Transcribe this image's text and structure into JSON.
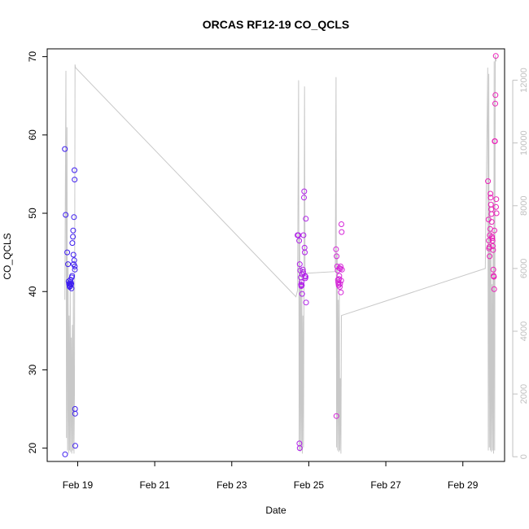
{
  "chart_data": {
    "type": "scatter",
    "title": "ORCAS RF12-19 CO_QCLS",
    "xlabel": "Date",
    "ylabel": "CO_QCLS",
    "xlim": [
      "2016-02-18T05:00",
      "2016-03-01T02:00"
    ],
    "ylim": [
      18.3,
      71.0
    ],
    "y2lim": [
      -150,
      13000
    ],
    "x_ticks": [
      {
        "date": "2016-02-19T00:00",
        "label": "Feb 19"
      },
      {
        "date": "2016-02-21T00:00",
        "label": "Feb 21"
      },
      {
        "date": "2016-02-23T00:00",
        "label": "Feb 23"
      },
      {
        "date": "2016-02-25T00:00",
        "label": "Feb 25"
      },
      {
        "date": "2016-02-27T00:00",
        "label": "Feb 27"
      },
      {
        "date": "2016-02-29T00:00",
        "label": "Feb 29"
      }
    ],
    "y_ticks": [
      20,
      30,
      40,
      50,
      60,
      70
    ],
    "y2_ticks": [
      0,
      2000,
      4000,
      6000,
      8000,
      10000,
      12000
    ],
    "grid": false,
    "legend": "none",
    "colors": {
      "day1": "#3d1df0",
      "day2": "#b020e8",
      "day3": "#d525d8",
      "day4": "#ea1fb8",
      "altitude_line": "#c8c8c8",
      "right_axis": "#c0c0c0"
    },
    "series": [
      {
        "color_key": "day1",
        "points": [
          [
            "2016-02-18T16:00",
            58.2
          ],
          [
            "2016-02-18T16:30",
            49.8
          ],
          [
            "2016-02-18T17:30",
            45.0
          ],
          [
            "2016-02-18T18:00",
            43.5
          ],
          [
            "2016-02-18T18:20",
            41.3
          ],
          [
            "2016-02-18T18:40",
            41.0
          ],
          [
            "2016-02-18T18:50",
            40.8
          ],
          [
            "2016-02-18T19:00",
            40.6
          ],
          [
            "2016-02-18T19:10",
            41.0
          ],
          [
            "2016-02-18T19:20",
            40.7
          ],
          [
            "2016-02-18T19:30",
            41.5
          ],
          [
            "2016-02-18T19:40",
            41.2
          ],
          [
            "2016-02-18T19:50",
            40.9
          ],
          [
            "2016-02-18T20:00",
            41.0
          ],
          [
            "2016-02-18T20:10",
            40.4
          ],
          [
            "2016-02-18T20:20",
            41.8
          ],
          [
            "2016-02-18T20:30",
            42.0
          ],
          [
            "2016-02-18T20:40",
            46.2
          ],
          [
            "2016-02-18T21:00",
            47.0
          ],
          [
            "2016-02-18T21:10",
            47.8
          ],
          [
            "2016-02-18T21:20",
            44.7
          ],
          [
            "2016-02-18T21:30",
            43.5
          ],
          [
            "2016-02-18T21:40",
            49.5
          ],
          [
            "2016-02-18T21:50",
            44.0
          ],
          [
            "2016-02-18T22:00",
            55.5
          ],
          [
            "2016-02-18T22:05",
            54.3
          ],
          [
            "2016-02-18T22:10",
            43.2
          ],
          [
            "2016-02-18T22:15",
            42.8
          ],
          [
            "2016-02-18T22:20",
            25.0
          ],
          [
            "2016-02-18T22:25",
            24.4
          ],
          [
            "2016-02-18T22:30",
            20.3
          ],
          [
            "2016-02-18T16:10",
            19.2
          ]
        ]
      },
      {
        "color_key": "day2",
        "points": [
          [
            "2016-02-24T17:00",
            47.2
          ],
          [
            "2016-02-24T17:30",
            47.2
          ],
          [
            "2016-02-24T18:00",
            46.5
          ],
          [
            "2016-02-24T18:20",
            43.5
          ],
          [
            "2016-02-24T18:40",
            42.7
          ],
          [
            "2016-02-24T19:00",
            41.8
          ],
          [
            "2016-02-24T19:10",
            40.9
          ],
          [
            "2016-02-24T19:20",
            40.7
          ],
          [
            "2016-02-24T19:30",
            41.2
          ],
          [
            "2016-02-24T19:40",
            40.8
          ],
          [
            "2016-02-24T19:50",
            39.7
          ],
          [
            "2016-02-24T20:00",
            42.2
          ],
          [
            "2016-02-24T20:20",
            42.8
          ],
          [
            "2016-02-24T20:30",
            42.5
          ],
          [
            "2016-02-24T20:40",
            47.2
          ],
          [
            "2016-02-24T21:00",
            52.0
          ],
          [
            "2016-02-24T21:10",
            52.8
          ],
          [
            "2016-02-24T21:20",
            45.6
          ],
          [
            "2016-02-24T21:30",
            45.0
          ],
          [
            "2016-02-24T21:40",
            42.0
          ],
          [
            "2016-02-24T21:50",
            41.7
          ],
          [
            "2016-02-24T22:00",
            41.9
          ],
          [
            "2016-02-24T22:10",
            49.3
          ],
          [
            "2016-02-24T22:20",
            38.6
          ],
          [
            "2016-02-24T18:10",
            20.6
          ],
          [
            "2016-02-24T18:20",
            20.0
          ]
        ]
      },
      {
        "color_key": "day3",
        "points": [
          [
            "2016-02-25T17:00",
            45.4
          ],
          [
            "2016-02-25T17:20",
            44.5
          ],
          [
            "2016-02-25T17:40",
            43.2
          ],
          [
            "2016-02-25T18:00",
            42.7
          ],
          [
            "2016-02-25T18:10",
            41.5
          ],
          [
            "2016-02-25T18:20",
            41.2
          ],
          [
            "2016-02-25T18:30",
            41.0
          ],
          [
            "2016-02-25T18:40",
            40.8
          ],
          [
            "2016-02-25T18:50",
            41.6
          ],
          [
            "2016-02-25T19:00",
            42.0
          ],
          [
            "2016-02-25T19:10",
            43.0
          ],
          [
            "2016-02-25T19:20",
            40.6
          ],
          [
            "2016-02-25T19:30",
            41.0
          ],
          [
            "2016-02-25T19:40",
            42.9
          ],
          [
            "2016-02-25T19:50",
            43.2
          ],
          [
            "2016-02-25T20:00",
            39.9
          ],
          [
            "2016-02-25T20:10",
            41.4
          ],
          [
            "2016-02-25T20:20",
            48.6
          ],
          [
            "2016-02-25T20:30",
            47.6
          ],
          [
            "2016-02-25T20:40",
            42.8
          ],
          [
            "2016-02-25T17:10",
            24.1
          ]
        ]
      },
      {
        "color_key": "day4",
        "points": [
          [
            "2016-02-29T15:40",
            54.1
          ],
          [
            "2016-02-29T16:00",
            49.2
          ],
          [
            "2016-02-29T16:10",
            46.5
          ],
          [
            "2016-02-29T16:20",
            45.5
          ],
          [
            "2016-02-29T16:30",
            45.7
          ],
          [
            "2016-02-29T16:40",
            44.5
          ],
          [
            "2016-02-29T16:50",
            47.2
          ],
          [
            "2016-02-29T17:00",
            48.0
          ],
          [
            "2016-02-29T17:10",
            52.5
          ],
          [
            "2016-02-29T17:20",
            52.0
          ],
          [
            "2016-02-29T17:30",
            51.1
          ],
          [
            "2016-02-29T17:40",
            50.5
          ],
          [
            "2016-02-29T17:50",
            49.9
          ],
          [
            "2016-02-29T18:00",
            48.9
          ],
          [
            "2016-02-29T18:10",
            47.0
          ],
          [
            "2016-02-29T18:20",
            46.8
          ],
          [
            "2016-02-29T18:30",
            46.5
          ],
          [
            "2016-02-29T18:40",
            45.8
          ],
          [
            "2016-02-29T18:50",
            45.3
          ],
          [
            "2016-02-29T19:00",
            42.8
          ],
          [
            "2016-02-29T19:10",
            42.0
          ],
          [
            "2016-02-29T19:20",
            41.9
          ],
          [
            "2016-02-29T19:30",
            40.3
          ],
          [
            "2016-02-29T19:40",
            47.8
          ],
          [
            "2016-02-29T19:50",
            59.2
          ],
          [
            "2016-02-29T20:00",
            59.2
          ],
          [
            "2016-02-29T20:10",
            64.0
          ],
          [
            "2016-02-29T20:20",
            65.1
          ],
          [
            "2016-02-29T20:30",
            70.1
          ],
          [
            "2016-02-29T20:40",
            50.8
          ],
          [
            "2016-02-29T20:50",
            51.8
          ],
          [
            "2016-02-29T21:00",
            50.0
          ]
        ]
      }
    ],
    "altitude_line": {
      "axis": "right",
      "points": [
        [
          "2016-02-18T16:00",
          5000
        ],
        [
          "2016-02-18T16:40",
          12300
        ],
        [
          "2016-02-18T17:00",
          600
        ],
        [
          "2016-02-18T17:20",
          10500
        ],
        [
          "2016-02-18T17:40",
          200
        ],
        [
          "2016-02-18T18:00",
          6200
        ],
        [
          "2016-02-18T18:20",
          100
        ],
        [
          "2016-02-18T18:40",
          4500
        ],
        [
          "2016-02-18T19:00",
          200
        ],
        [
          "2016-02-18T19:20",
          5500
        ],
        [
          "2016-02-18T19:40",
          150
        ],
        [
          "2016-02-18T20:00",
          3800
        ],
        [
          "2016-02-18T20:20",
          100
        ],
        [
          "2016-02-18T20:40",
          4200
        ],
        [
          "2016-02-18T21:00",
          200
        ],
        [
          "2016-02-18T21:20",
          5600
        ],
        [
          "2016-02-18T21:40",
          100
        ],
        [
          "2016-02-18T22:00",
          2000
        ],
        [
          "2016-02-18T22:20",
          12500
        ],
        [
          "2016-02-18T22:40",
          12400
        ],
        [
          "2016-02-24T16:00",
          5100
        ],
        [
          "2016-02-24T17:00",
          5300
        ],
        [
          "2016-02-24T17:40",
          12000
        ],
        [
          "2016-02-24T18:00",
          200
        ],
        [
          "2016-02-24T18:20",
          7000
        ],
        [
          "2016-02-24T18:40",
          150
        ],
        [
          "2016-02-24T19:00",
          5500
        ],
        [
          "2016-02-24T19:20",
          200
        ],
        [
          "2016-02-24T19:40",
          6000
        ],
        [
          "2016-02-24T20:00",
          100
        ],
        [
          "2016-02-24T20:20",
          4500
        ],
        [
          "2016-02-24T20:40",
          300
        ],
        [
          "2016-02-24T21:00",
          5200
        ],
        [
          "2016-02-24T21:20",
          11800
        ],
        [
          "2016-02-24T21:40",
          5800
        ],
        [
          "2016-02-24T22:30",
          5850
        ],
        [
          "2016-02-25T16:30",
          5900
        ],
        [
          "2016-02-25T17:00",
          12100
        ],
        [
          "2016-02-25T17:20",
          300
        ],
        [
          "2016-02-25T17:40",
          6500
        ],
        [
          "2016-02-25T18:00",
          200
        ],
        [
          "2016-02-25T18:20",
          5000
        ],
        [
          "2016-02-25T18:40",
          150
        ],
        [
          "2016-02-25T19:00",
          5200
        ],
        [
          "2016-02-25T19:20",
          200
        ],
        [
          "2016-02-25T19:40",
          2500
        ],
        [
          "2016-02-25T20:00",
          100
        ],
        [
          "2016-02-25T20:20",
          4500
        ],
        [
          "2016-02-29T14:00",
          6000
        ],
        [
          "2016-02-29T15:30",
          12400
        ],
        [
          "2016-02-29T15:50",
          200
        ],
        [
          "2016-02-29T16:10",
          12200
        ],
        [
          "2016-02-29T16:30",
          300
        ],
        [
          "2016-02-29T16:50",
          8000
        ],
        [
          "2016-02-29T17:10",
          200
        ],
        [
          "2016-02-29T17:30",
          7200
        ],
        [
          "2016-02-29T17:50",
          150
        ],
        [
          "2016-02-29T18:10",
          5500
        ],
        [
          "2016-02-29T18:30",
          200
        ],
        [
          "2016-02-29T18:50",
          6800
        ],
        [
          "2016-02-29T19:10",
          100
        ],
        [
          "2016-02-29T19:30",
          12600
        ],
        [
          "2016-02-29T19:50",
          200
        ],
        [
          "2016-02-29T20:10",
          12800
        ],
        [
          "2016-02-29T20:30",
          12700
        ],
        [
          "2016-02-29T20:50",
          12600
        ]
      ]
    }
  }
}
